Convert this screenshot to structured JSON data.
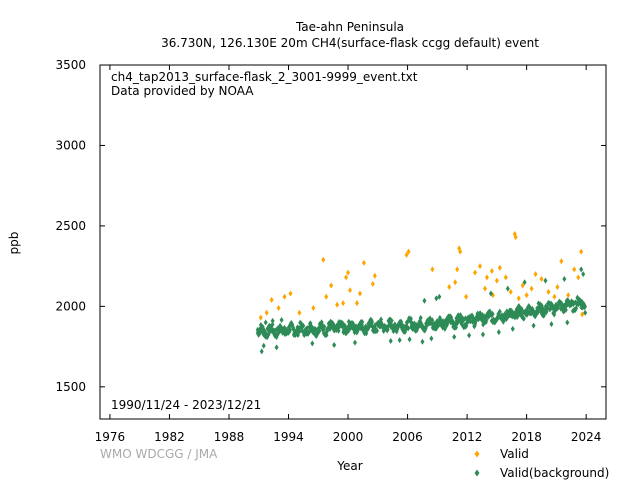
{
  "chart_data": {
    "type": "scatter",
    "title": "Tae-ahn Peninsula",
    "subtitle": "36.730N, 126.130E 20m    CH4(surface-flask ccgg default) event",
    "annotation_lines": [
      "ch4_tap2013_surface-flask_2_3001-9999_event.txt",
      "Data provided by NOAA"
    ],
    "date_range": "1990/11/24 - 2023/12/21",
    "watermark": "WMO WDCGG / JMA",
    "xlabel": "Year",
    "ylabel": "ppb",
    "xlim": [
      1975.0,
      2026.0
    ],
    "ylim": [
      1300,
      3500
    ],
    "x_ticks": [
      1976,
      1982,
      1988,
      1994,
      2000,
      2006,
      2012,
      2018,
      2024
    ],
    "y_ticks": [
      1500,
      2000,
      2500,
      3000,
      3500
    ],
    "grid": false,
    "legend_position": "bottom-right",
    "series": [
      {
        "name": "Valid",
        "color": "#ffa500",
        "marker": "diamond",
        "points": [
          [
            1991.2,
            1930
          ],
          [
            1991.8,
            1960
          ],
          [
            1992.3,
            2040
          ],
          [
            1993.0,
            1990
          ],
          [
            1993.6,
            2060
          ],
          [
            1994.2,
            2080
          ],
          [
            1995.1,
            1960
          ],
          [
            1996.5,
            1990
          ],
          [
            1997.5,
            2290
          ],
          [
            1997.8,
            2060
          ],
          [
            1998.3,
            2130
          ],
          [
            1998.9,
            2010
          ],
          [
            1999.5,
            2020
          ],
          [
            1999.8,
            2180
          ],
          [
            2000.0,
            2210
          ],
          [
            2000.2,
            2100
          ],
          [
            2000.9,
            2020
          ],
          [
            2001.2,
            2080
          ],
          [
            2001.6,
            2270
          ],
          [
            2002.5,
            2140
          ],
          [
            2002.7,
            2190
          ],
          [
            2005.9,
            2320
          ],
          [
            2006.1,
            2340
          ],
          [
            2008.5,
            2230
          ],
          [
            2010.2,
            2120
          ],
          [
            2010.8,
            2150
          ],
          [
            2011.0,
            2230
          ],
          [
            2011.2,
            2360
          ],
          [
            2011.3,
            2340
          ],
          [
            2011.9,
            2060
          ],
          [
            2012.8,
            2210
          ],
          [
            2013.3,
            2250
          ],
          [
            2013.8,
            2110
          ],
          [
            2014.0,
            2180
          ],
          [
            2014.5,
            2220
          ],
          [
            2014.6,
            2070
          ],
          [
            2015.0,
            2160
          ],
          [
            2015.3,
            2240
          ],
          [
            2015.9,
            2180
          ],
          [
            2016.4,
            2090
          ],
          [
            2016.8,
            2450
          ],
          [
            2016.9,
            2430
          ],
          [
            2017.2,
            2050
          ],
          [
            2017.6,
            2130
          ],
          [
            2018.0,
            2070
          ],
          [
            2018.5,
            2110
          ],
          [
            2018.9,
            2200
          ],
          [
            2019.5,
            2170
          ],
          [
            2020.2,
            2090
          ],
          [
            2020.8,
            2060
          ],
          [
            2021.1,
            2120
          ],
          [
            2021.5,
            2280
          ],
          [
            2022.2,
            2070
          ],
          [
            2022.8,
            2230
          ],
          [
            2023.2,
            2180
          ],
          [
            2023.5,
            2340
          ],
          [
            2023.6,
            1950
          ]
        ]
      },
      {
        "name": "Valid(background)",
        "color": "#2e8b57",
        "marker": "diamond",
        "points": [
          [
            1990.9,
            1855
          ],
          [
            1991.3,
            1720
          ],
          [
            1991.5,
            1755
          ],
          [
            1991.7,
            1900
          ],
          [
            1992.8,
            1745
          ],
          [
            1992.4,
            1910
          ],
          [
            1993.3,
            1915
          ],
          [
            1996.4,
            1770
          ],
          [
            1998.6,
            1760
          ],
          [
            2000.7,
            1775
          ],
          [
            2004.3,
            1785
          ],
          [
            2005.2,
            1790
          ],
          [
            2006.2,
            1795
          ],
          [
            2007.5,
            1780
          ],
          [
            2007.7,
            2035
          ],
          [
            2008.4,
            1800
          ],
          [
            2008.9,
            2050
          ],
          [
            2009.2,
            2060
          ],
          [
            2010.7,
            1810
          ],
          [
            2012.2,
            1820
          ],
          [
            2013.6,
            1825
          ],
          [
            2014.4,
            2080
          ],
          [
            2015.2,
            1840
          ],
          [
            2016.1,
            2110
          ],
          [
            2016.6,
            1860
          ],
          [
            2017.8,
            2150
          ],
          [
            2018.7,
            1880
          ],
          [
            2019.9,
            2160
          ],
          [
            2020.5,
            1890
          ],
          [
            2021.8,
            2170
          ],
          [
            2022.1,
            1900
          ],
          [
            2023.5,
            2230
          ],
          [
            2023.7,
            2200
          ],
          [
            2023.9,
            1960
          ]
        ]
      }
    ],
    "background_trend": {
      "description": "dense band",
      "x_start": 1990.9,
      "x_end": 2023.9,
      "baseline": [
        [
          1990.9,
          1845
        ],
        [
          1995.0,
          1855
        ],
        [
          2000.0,
          1870
        ],
        [
          2005.0,
          1880
        ],
        [
          2008.0,
          1890
        ],
        [
          2012.0,
          1915
        ],
        [
          2016.0,
          1945
        ],
        [
          2020.0,
          1985
        ],
        [
          2023.9,
          2025
        ]
      ],
      "spread": 55
    }
  }
}
